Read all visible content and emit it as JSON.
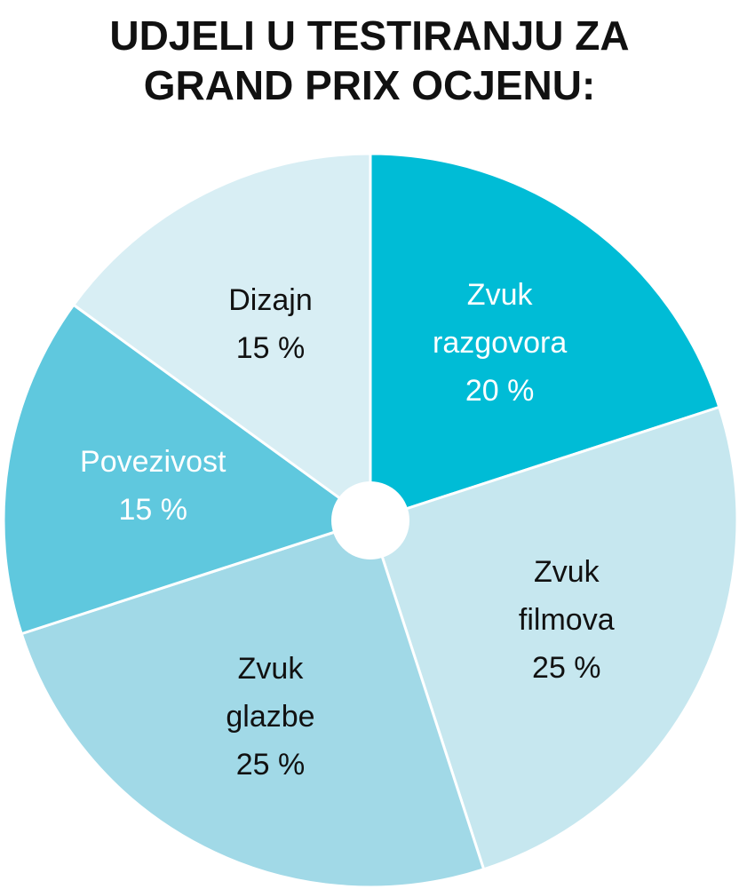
{
  "chart_data": {
    "type": "pie",
    "title": "UDJELI U TESTIRANJU ZA\nGRAND PRIX OCJENU:",
    "categories": [
      "Zvuk\nrazgovora",
      "Zvuk\nfilmova",
      "Zvuk\nglazbe",
      "Povezivost",
      "Dizajn"
    ],
    "values": [
      20,
      25,
      25,
      15,
      15
    ],
    "value_labels": [
      "20 %",
      "25 %",
      "25 %",
      "15 %",
      "15 %"
    ],
    "colors": [
      "#00bcd6",
      "#c6e7ef",
      "#a1d9e7",
      "#5fc8de",
      "#d8eef4"
    ]
  }
}
